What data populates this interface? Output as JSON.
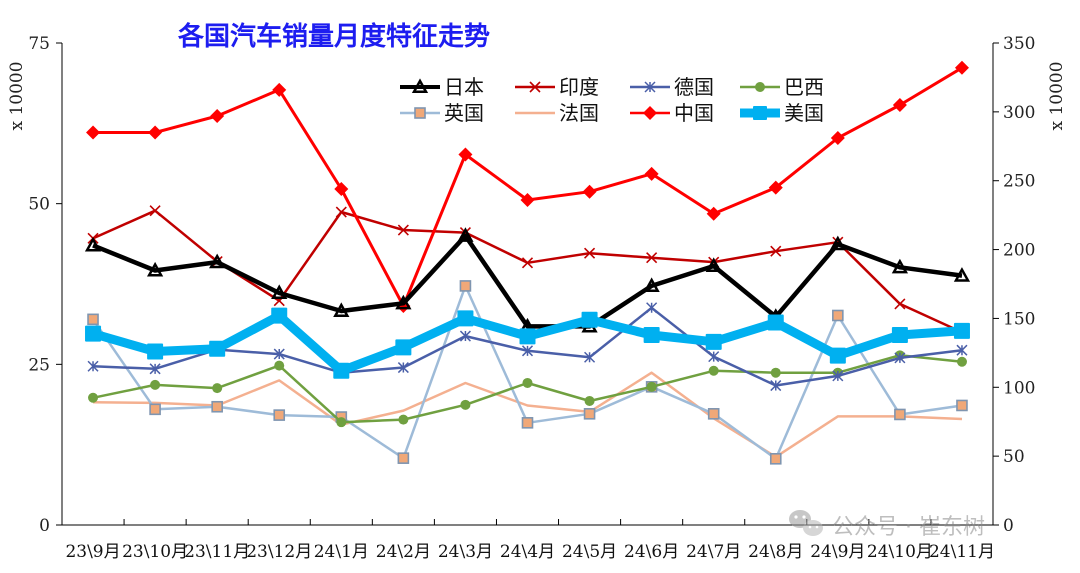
{
  "chart_data": {
    "type": "line",
    "title": "各国汽车销量月度特征走势",
    "y_left_unit": "x 10000",
    "y_right_unit": "x 10000",
    "y_left_range": [
      0,
      75
    ],
    "y_left_ticks": [
      "0",
      "25",
      "50",
      "75"
    ],
    "y_right_range": [
      0,
      350
    ],
    "y_right_ticks": [
      "0",
      "50",
      "100",
      "150",
      "200",
      "250",
      "300",
      "350"
    ],
    "categories": [
      "23\\9月",
      "23\\10月",
      "23\\11月",
      "23\\12月",
      "24\\1月",
      "24\\2月",
      "24\\3月",
      "24\\4月",
      "24\\5月",
      "24\\6月",
      "24\\7月",
      "24\\8月",
      "24\\9月",
      "24\\10月",
      "24\\11月"
    ],
    "legend_position": "top-center",
    "grid": false,
    "series": [
      {
        "name": "日本",
        "axis": "left",
        "color": "#000000",
        "marker": "triangle",
        "values": [
          43.5,
          39.6,
          40.9,
          36.1,
          33.3,
          34.5,
          45.0,
          30.9,
          30.9,
          37.2,
          40.3,
          32.4,
          43.7,
          40.1,
          38.8
        ]
      },
      {
        "name": "印度",
        "axis": "left",
        "color": "#c00000",
        "marker": "x",
        "values": [
          44.6,
          48.9,
          41.0,
          34.9,
          48.7,
          45.9,
          45.5,
          40.8,
          42.3,
          41.6,
          40.9,
          42.6,
          44.0,
          34.4,
          30.0
        ]
      },
      {
        "name": "德国",
        "axis": "left",
        "color": "#4a5fa8",
        "marker": "star",
        "values": [
          24.7,
          24.3,
          27.3,
          26.6,
          23.7,
          24.5,
          29.4,
          27.1,
          26.1,
          33.8,
          26.2,
          21.7,
          23.2,
          26.0,
          27.2
        ]
      },
      {
        "name": "巴西",
        "axis": "left",
        "color": "#70a040",
        "marker": "circle",
        "values": [
          19.8,
          21.8,
          21.3,
          24.8,
          16.0,
          16.4,
          18.7,
          22.1,
          19.3,
          21.5,
          24.0,
          23.7,
          23.7,
          26.4,
          25.4
        ]
      },
      {
        "name": "英国",
        "axis": "left",
        "color": "#9ebbd8",
        "marker": "square",
        "values": [
          32.0,
          18.0,
          18.4,
          17.1,
          16.8,
          10.4,
          37.2,
          15.9,
          17.3,
          21.5,
          17.3,
          10.3,
          32.6,
          17.2,
          18.6
        ]
      },
      {
        "name": "法国",
        "axis": "left",
        "color": "#f4b090",
        "marker": "none",
        "values": [
          19.1,
          19.0,
          18.6,
          22.5,
          15.6,
          17.8,
          22.1,
          18.6,
          17.6,
          23.7,
          16.6,
          10.6,
          16.9,
          16.9,
          16.5
        ]
      },
      {
        "name": "中国",
        "axis": "right",
        "color": "#ff0000",
        "marker": "diamond",
        "values": [
          285,
          285,
          297,
          316,
          244,
          159,
          269,
          236,
          242,
          255,
          226,
          245,
          281,
          305,
          332
        ]
      },
      {
        "name": "美国",
        "axis": "right",
        "color": "#00b0f0",
        "marker": "square",
        "values": [
          139,
          126,
          128,
          152,
          112,
          129,
          150,
          137,
          149,
          138,
          133,
          147,
          123,
          138,
          141
        ]
      }
    ]
  },
  "watermark": "公众号 · 崔东树"
}
